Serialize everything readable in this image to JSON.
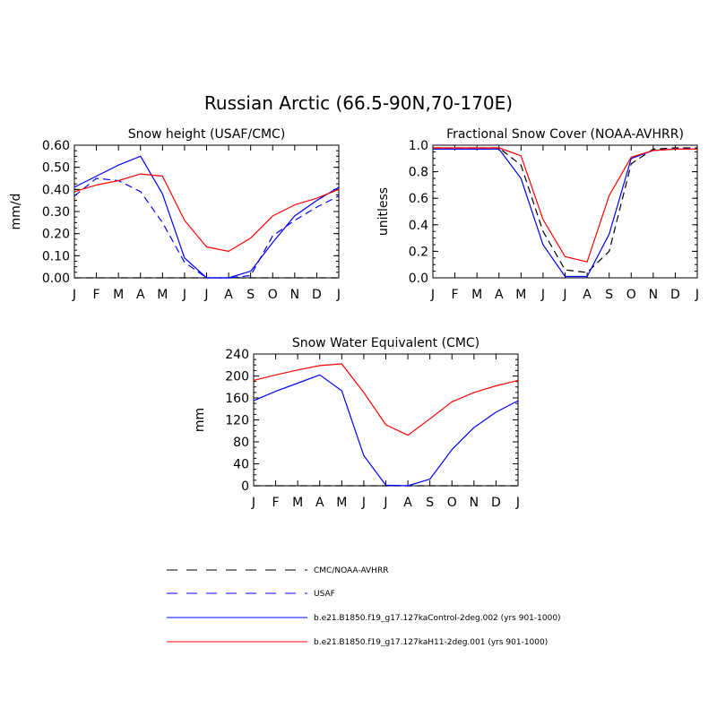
{
  "title": "Russian Arctic (66.5-90N,70-170E)",
  "legend": [
    {
      "label": "CMC/NOAA-AVHRR",
      "color": "#000000",
      "dash": "dashed"
    },
    {
      "label": "USAF",
      "color": "#0000ff",
      "dash": "dashed"
    },
    {
      "label": "b.e21.B1850.f19_g17.127kaControl-2deg.002 (yrs 901-1000)",
      "color": "#0000ff",
      "dash": "solid"
    },
    {
      "label": "b.e21.B1850.f19_g17.127kaH11-2deg.001 (yrs 901-1000)",
      "color": "#ff0000",
      "dash": "solid"
    }
  ],
  "chart_data": [
    {
      "type": "line",
      "title": "Snow height (USAF/CMC)",
      "ylabel": "mm/d",
      "xlabel": "",
      "categories": [
        "J",
        "F",
        "M",
        "A",
        "M",
        "J",
        "J",
        "A",
        "S",
        "O",
        "N",
        "D",
        "J"
      ],
      "ylim": [
        0,
        0.6
      ],
      "yticks": [
        "0.00",
        "0.10",
        "0.20",
        "0.30",
        "0.40",
        "0.50",
        "0.60"
      ],
      "yticks_values": [
        0,
        0.1,
        0.2,
        0.3,
        0.4,
        0.5,
        0.6
      ],
      "series": [
        {
          "name": "CMC/NOAA-AVHRR",
          "color": "#000000",
          "dash": "dashed",
          "values": [
            0,
            0,
            0,
            0,
            0,
            0,
            0,
            0,
            0,
            0,
            0,
            0,
            0
          ]
        },
        {
          "name": "USAF",
          "color": "#0000ff",
          "dash": "dashed",
          "values": [
            0.37,
            0.45,
            0.44,
            0.39,
            0.25,
            0.07,
            0,
            0,
            0.01,
            0.19,
            0.26,
            0.32,
            0.37
          ]
        },
        {
          "name": "b.e21.B1850.f19_g17.127kaControl-2deg.002 (yrs 901-1000)",
          "color": "#0000ff",
          "dash": "solid",
          "values": [
            0.41,
            0.46,
            0.51,
            0.55,
            0.38,
            0.09,
            0,
            0,
            0.03,
            0.16,
            0.28,
            0.35,
            0.41
          ]
        },
        {
          "name": "b.e21.B1850.f19_g17.127kaH11-2deg.001 (yrs 901-1000)",
          "color": "#ff0000",
          "dash": "solid",
          "values": [
            0.39,
            0.42,
            0.44,
            0.47,
            0.46,
            0.26,
            0.14,
            0.12,
            0.18,
            0.28,
            0.33,
            0.36,
            0.4
          ]
        }
      ]
    },
    {
      "type": "line",
      "title": "Fractional Snow Cover (NOAA-AVHRR)",
      "ylabel": "unitless",
      "xlabel": "",
      "categories": [
        "J",
        "F",
        "M",
        "A",
        "M",
        "J",
        "J",
        "A",
        "S",
        "O",
        "N",
        "D",
        "J"
      ],
      "ylim": [
        0,
        1.0
      ],
      "yticks": [
        "0.0",
        "0.2",
        "0.4",
        "0.6",
        "0.8",
        "1.0"
      ],
      "yticks_values": [
        0,
        0.2,
        0.4,
        0.6,
        0.8,
        1.0
      ],
      "series": [
        {
          "name": "CMC/NOAA-AVHRR",
          "color": "#000000",
          "dash": "dashed",
          "values": [
            0.98,
            0.98,
            0.98,
            0.98,
            0.85,
            0.35,
            0.06,
            0.04,
            0.2,
            0.86,
            0.97,
            0.98,
            0.98
          ]
        },
        {
          "name": "b.e21.B1850.f19_g17.127kaControl-2deg.002 (yrs 901-1000)",
          "color": "#0000ff",
          "dash": "solid",
          "values": [
            0.97,
            0.97,
            0.97,
            0.97,
            0.75,
            0.25,
            0.01,
            0.01,
            0.33,
            0.9,
            0.96,
            0.97,
            0.97
          ]
        },
        {
          "name": "b.e21.B1850.f19_g17.127kaH11-2deg.001 (yrs 901-1000)",
          "color": "#ff0000",
          "dash": "solid",
          "values": [
            0.98,
            0.98,
            0.98,
            0.98,
            0.92,
            0.44,
            0.16,
            0.12,
            0.62,
            0.91,
            0.96,
            0.97,
            0.97
          ]
        }
      ]
    },
    {
      "type": "line",
      "title": "Snow Water Equivalent (CMC)",
      "ylabel": "mm",
      "xlabel": "",
      "categories": [
        "J",
        "F",
        "M",
        "A",
        "M",
        "J",
        "J",
        "A",
        "S",
        "O",
        "N",
        "D",
        "J"
      ],
      "ylim": [
        0,
        240
      ],
      "yticks": [
        "0",
        "40",
        "80",
        "120",
        "160",
        "200",
        "240"
      ],
      "yticks_values": [
        0,
        40,
        80,
        120,
        160,
        200,
        240
      ],
      "series": [
        {
          "name": "CMC/NOAA-AVHRR",
          "color": "#000000",
          "dash": "dashed",
          "values": [
            0,
            0,
            0,
            0,
            0,
            0,
            0,
            0,
            0,
            0,
            0,
            0,
            0
          ]
        },
        {
          "name": "b.e21.B1850.f19_g17.127kaControl-2deg.002 (yrs 901-1000)",
          "color": "#0000ff",
          "dash": "solid",
          "values": [
            155,
            172,
            187,
            202,
            173,
            55,
            1,
            0,
            12,
            66,
            106,
            134,
            155
          ]
        },
        {
          "name": "b.e21.B1850.f19_g17.127kaH11-2deg.001 (yrs 901-1000)",
          "color": "#ff0000",
          "dash": "solid",
          "values": [
            192,
            202,
            211,
            219,
            222,
            170,
            111,
            92,
            122,
            153,
            170,
            182,
            192
          ]
        }
      ]
    }
  ]
}
